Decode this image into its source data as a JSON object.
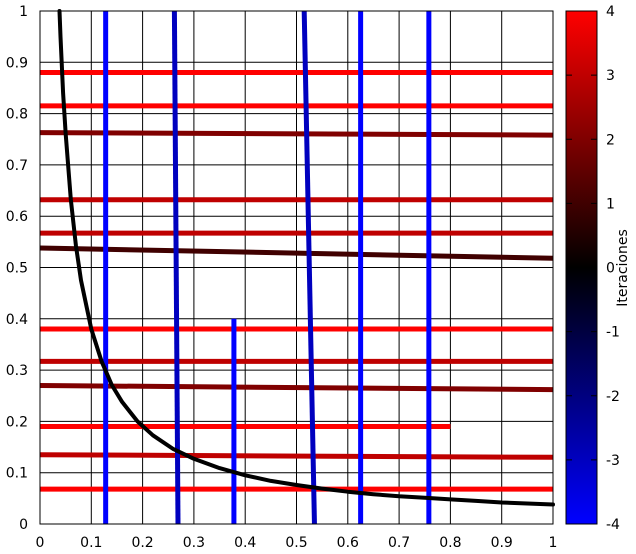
{
  "chart_data": {
    "type": "line",
    "xlim": [
      0,
      1
    ],
    "ylim": [
      0,
      1
    ],
    "grid": true,
    "x_ticks": [
      "0",
      "0.1",
      "0.2",
      "0.3",
      "0.4",
      "0.5",
      "0.6",
      "0.7",
      "0.8",
      "0.9",
      "1"
    ],
    "y_ticks": [
      "0",
      "0.1",
      "0.2",
      "0.3",
      "0.4",
      "0.5",
      "0.6",
      "0.7",
      "0.8",
      "0.9",
      "1"
    ],
    "colorbar": {
      "label": "Iteraciones",
      "range": [
        -4,
        4
      ],
      "ticks": [
        "-4",
        "-3",
        "-2",
        "-1",
        "0",
        "1",
        "2",
        "3",
        "4"
      ],
      "color_low": "#0000ff",
      "color_mid": "#000000",
      "color_high": "#ff0000"
    },
    "horizontal_lines": [
      {
        "x": [
          0,
          1
        ],
        "y": [
          0.88,
          0.88
        ],
        "iter": 4
      },
      {
        "x": [
          0,
          1
        ],
        "y": [
          0.815,
          0.815
        ],
        "iter": 4
      },
      {
        "x": [
          0,
          1
        ],
        "y": [
          0.763,
          0.758
        ],
        "iter": 2
      },
      {
        "x": [
          0,
          1
        ],
        "y": [
          0.632,
          0.632
        ],
        "iter": 3
      },
      {
        "x": [
          0,
          1
        ],
        "y": [
          0.567,
          0.567
        ],
        "iter": 3
      },
      {
        "x": [
          0,
          1
        ],
        "y": [
          0.538,
          0.518
        ],
        "iter": 1
      },
      {
        "x": [
          0,
          1
        ],
        "y": [
          0.38,
          0.38
        ],
        "iter": 4
      },
      {
        "x": [
          0,
          1
        ],
        "y": [
          0.317,
          0.317
        ],
        "iter": 3
      },
      {
        "x": [
          0,
          1
        ],
        "y": [
          0.27,
          0.262
        ],
        "iter": 2
      },
      {
        "x": [
          0,
          0.8
        ],
        "y": [
          0.19,
          0.19
        ],
        "iter": 4
      },
      {
        "x": [
          0,
          1
        ],
        "y": [
          0.135,
          0.13
        ],
        "iter": 3
      },
      {
        "x": [
          0,
          1
        ],
        "y": [
          0.068,
          0.068
        ],
        "iter": 4
      }
    ],
    "vertical_lines": [
      {
        "x": [
          0.128,
          0.128
        ],
        "y": [
          0,
          1
        ],
        "iter": -4
      },
      {
        "x": [
          0.262,
          0.269
        ],
        "y": [
          1,
          0
        ],
        "iter": -3
      },
      {
        "x": [
          0.378,
          0.378
        ],
        "y": [
          0,
          0.4
        ],
        "iter": -4
      },
      {
        "x": [
          0.515,
          0.535
        ],
        "y": [
          1,
          0
        ],
        "iter": -3
      },
      {
        "x": [
          0.625,
          0.625
        ],
        "y": [
          0,
          1
        ],
        "iter": -4
      },
      {
        "x": [
          0.758,
          0.758
        ],
        "y": [
          0,
          1
        ],
        "iter": -4
      }
    ],
    "curve": {
      "x": [
        0.038,
        0.04,
        0.045,
        0.05,
        0.06,
        0.07,
        0.08,
        0.1,
        0.12,
        0.14,
        0.16,
        0.19,
        0.22,
        0.26,
        0.3,
        0.35,
        0.4,
        0.45,
        0.5,
        0.55,
        0.6,
        0.65,
        0.7,
        0.75,
        0.8,
        0.85,
        0.9,
        0.95,
        1.0
      ],
      "y": [
        1.0,
        0.95,
        0.84,
        0.76,
        0.633,
        0.543,
        0.475,
        0.38,
        0.317,
        0.271,
        0.238,
        0.2,
        0.173,
        0.146,
        0.127,
        0.109,
        0.095,
        0.084,
        0.076,
        0.069,
        0.063,
        0.058,
        0.054,
        0.051,
        0.048,
        0.045,
        0.042,
        0.04,
        0.038
      ],
      "iter": 0
    }
  }
}
